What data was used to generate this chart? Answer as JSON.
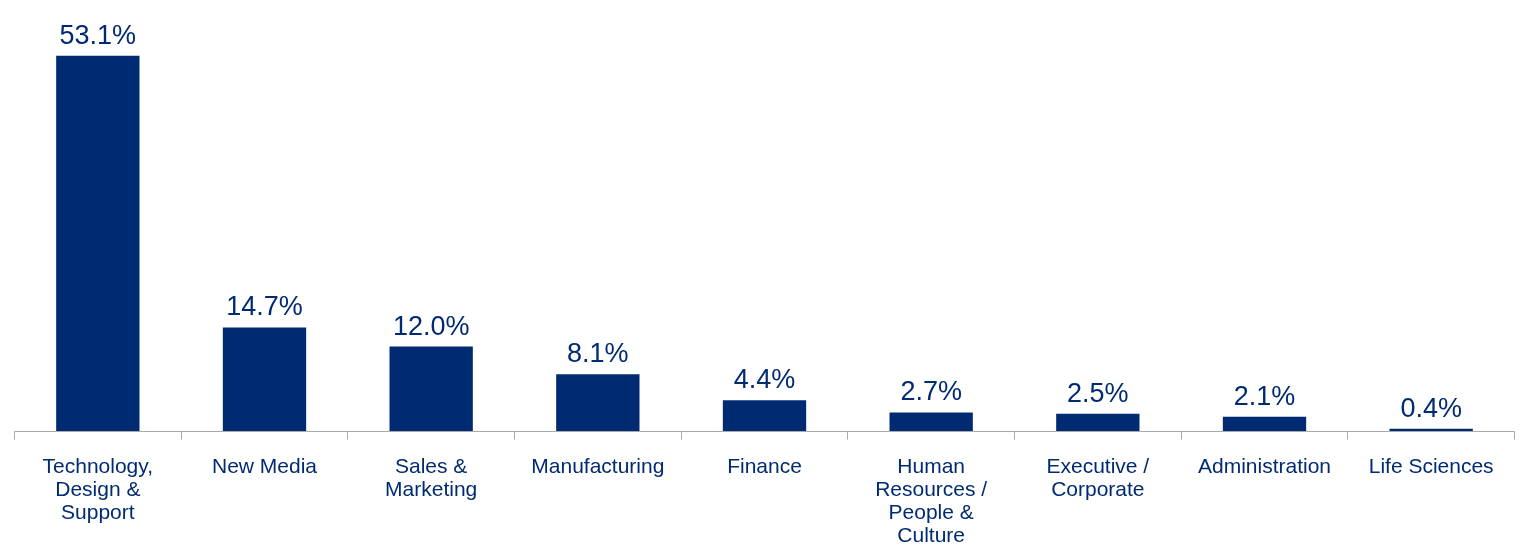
{
  "chart_data": {
    "type": "bar",
    "categories": [
      "Technology, Design & Support",
      "New Media",
      "Sales & Marketing",
      "Manufacturing",
      "Finance",
      "Human Resources / People & Culture",
      "Executive / Corporate",
      "Administration",
      "Life Sciences"
    ],
    "values": [
      53.1,
      14.7,
      12.0,
      8.1,
      4.4,
      2.7,
      2.5,
      2.1,
      0.4
    ],
    "value_labels": [
      "53.1%",
      "14.7%",
      "12.0%",
      "8.1%",
      "4.4%",
      "2.7%",
      "2.5%",
      "2.1%",
      "0.4%"
    ],
    "color": "#002b73",
    "tick_labels": "x",
    "grid": false
  }
}
